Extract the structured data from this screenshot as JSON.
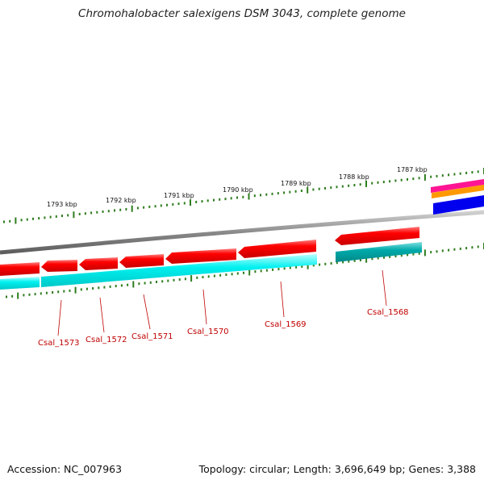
{
  "title": "Chromohalobacter salexigens DSM 3043, complete genome",
  "footer": {
    "accession": "Accession: NC_007963",
    "summary": "Topology: circular; Length: 3,696,649 bp; Genes: 3,388"
  },
  "ticks": [
    "1793 kbp",
    "1792 kbp",
    "1791 kbp",
    "1790 kbp",
    "1789 kbp",
    "1788 kbp",
    "1787 kbp"
  ],
  "genes": [
    "Csal_1573",
    "Csal_1572",
    "Csal_1571",
    "Csal_1570",
    "Csal_1569",
    "Csal_1568"
  ],
  "colors": {
    "cds": "#ff0000",
    "gene": "#00e5ee",
    "gene_alt": "#00aaaa",
    "backbone": "#8a8a8a",
    "ticks": "#2e7d1e",
    "label": "#c00000"
  }
}
